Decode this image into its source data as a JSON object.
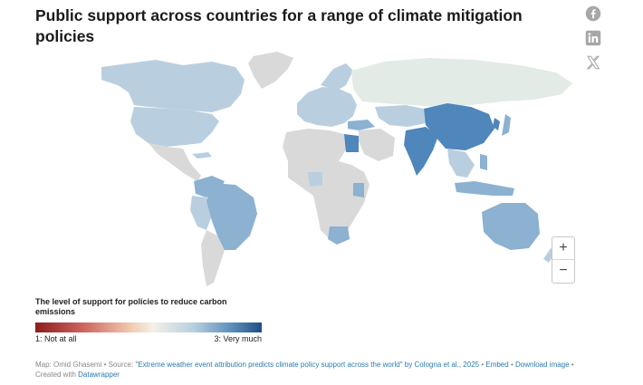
{
  "title": "Public support across countries for a range of climate mitigation policies",
  "share": {
    "icons": [
      "facebook-icon",
      "linkedin-icon",
      "x-icon"
    ]
  },
  "colors": {
    "no_data": "#d9d9d9",
    "not_covered": "#e2ebe6",
    "level_light": "#b9cfe0",
    "level_mid": "#8cb1d1",
    "level_strong": "#4f86bb"
  },
  "zoom": {
    "in_label": "+",
    "out_label": "−"
  },
  "legend": {
    "title": "The level of support for policies to reduce carbon emissions",
    "min_label": "1: Not at all",
    "max_label": "3: Very much",
    "scale_min": 1,
    "scale_max": 3
  },
  "footer": {
    "map_credit": "Map: Omid Ghasemi",
    "source_prefix": "Source:",
    "source_link": "\"Extreme weather event attribution predicts climate policy support across the world\" by Cologna et al., 2025",
    "embed_label": "Embed",
    "download_label": "Download image",
    "created_with": "Created with",
    "datawrapper_label": "Datawrapper"
  }
}
